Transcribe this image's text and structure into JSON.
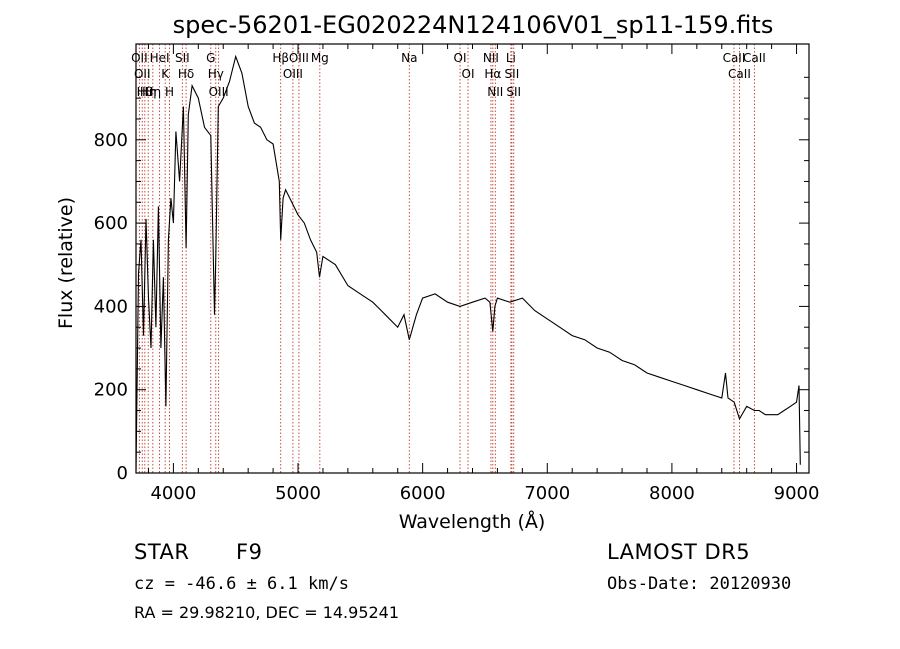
{
  "chart_data": {
    "type": "line",
    "title": "spec-56201-EG020224N124106V01_sp11-159.fits",
    "xlabel": "Wavelength (Å)",
    "ylabel": "Flux (relative)",
    "xlim": [
      3700,
      9100
    ],
    "ylim": [
      0,
      1030
    ],
    "xticks": [
      4000,
      5000,
      6000,
      7000,
      8000,
      9000
    ],
    "yticks": [
      0,
      200,
      400,
      600,
      800
    ],
    "series": [
      {
        "x": [
          3700,
          3720,
          3740,
          3760,
          3780,
          3800,
          3820,
          3840,
          3860,
          3880,
          3900,
          3920,
          3940,
          3960,
          3980,
          4000,
          4020,
          4050,
          4080,
          4102,
          4120,
          4150,
          4200,
          4250,
          4300,
          4330,
          4340,
          4360,
          4400,
          4450,
          4500,
          4550,
          4600,
          4650,
          4700,
          4750,
          4800,
          4850,
          4861,
          4880,
          4900,
          4950,
          5000,
          5050,
          5100,
          5150,
          5172,
          5200,
          5300,
          5400,
          5500,
          5600,
          5700,
          5800,
          5850,
          5893,
          5950,
          6000,
          6100,
          6200,
          6300,
          6400,
          6500,
          6540,
          6563,
          6580,
          6600,
          6700,
          6800,
          6900,
          7000,
          7100,
          7200,
          7300,
          7400,
          7500,
          7600,
          7700,
          7800,
          7900,
          8000,
          8100,
          8200,
          8300,
          8400,
          8430,
          8450,
          8500,
          8542,
          8600,
          8662,
          8700,
          8750,
          8800,
          8850,
          8900,
          8950,
          9000,
          9020,
          9030
        ],
        "y": [
          5,
          480,
          560,
          330,
          610,
          420,
          300,
          560,
          350,
          640,
          300,
          470,
          160,
          560,
          660,
          600,
          820,
          700,
          880,
          540,
          860,
          930,
          900,
          830,
          810,
          380,
          520,
          880,
          900,
          940,
          1000,
          960,
          880,
          840,
          830,
          800,
          790,
          700,
          560,
          660,
          680,
          650,
          620,
          600,
          560,
          530,
          470,
          520,
          500,
          450,
          430,
          410,
          380,
          350,
          380,
          320,
          380,
          420,
          430,
          410,
          400,
          410,
          420,
          410,
          340,
          400,
          420,
          410,
          420,
          390,
          370,
          350,
          330,
          320,
          300,
          290,
          270,
          260,
          240,
          230,
          220,
          210,
          200,
          190,
          180,
          240,
          180,
          170,
          130,
          160,
          150,
          150,
          140,
          140,
          140,
          150,
          160,
          170,
          210,
          20
        ]
      }
    ],
    "lines": [
      {
        "wl": 3727,
        "label": "OII"
      },
      {
        "wl": 3750,
        "label": "OII"
      },
      {
        "wl": 3771,
        "label": "Hθ"
      },
      {
        "wl": 3798,
        "label": "Hη"
      },
      {
        "wl": 3835,
        "label": "Hη"
      },
      {
        "wl": 3889,
        "label": "HeI"
      },
      {
        "wl": 3934,
        "label": "K"
      },
      {
        "wl": 3969,
        "label": "H"
      },
      {
        "wl": 4072,
        "label": "SII"
      },
      {
        "wl": 4102,
        "label": "Hδ"
      },
      {
        "wl": 4300,
        "label": "G"
      },
      {
        "wl": 4340,
        "label": "Hγ"
      },
      {
        "wl": 4363,
        "label": "OIII"
      },
      {
        "wl": 4861,
        "label": "Hβ"
      },
      {
        "wl": 4959,
        "label": "OIII"
      },
      {
        "wl": 5007,
        "label": "OIII"
      },
      {
        "wl": 5175,
        "label": "Mg"
      },
      {
        "wl": 5893,
        "label": "Na"
      },
      {
        "wl": 6300,
        "label": "OI"
      },
      {
        "wl": 6364,
        "label": "OI"
      },
      {
        "wl": 6548,
        "label": "NII"
      },
      {
        "wl": 6563,
        "label": "Hα"
      },
      {
        "wl": 6583,
        "label": "NII"
      },
      {
        "wl": 6708,
        "label": "Li"
      },
      {
        "wl": 6716,
        "label": "SII"
      },
      {
        "wl": 6731,
        "label": "SII"
      },
      {
        "wl": 8498,
        "label": "CaII"
      },
      {
        "wl": 8542,
        "label": "CaII"
      },
      {
        "wl": 8662,
        "label": "CaII"
      }
    ]
  },
  "info": {
    "class": "STAR",
    "subclass": "F9",
    "survey": "LAMOST DR5",
    "cz": "cz = -46.6 ± 6.1 km/s",
    "obs_date": "Obs-Date: 20120930",
    "coords": "RA =  29.98210, DEC =  14.95241"
  }
}
